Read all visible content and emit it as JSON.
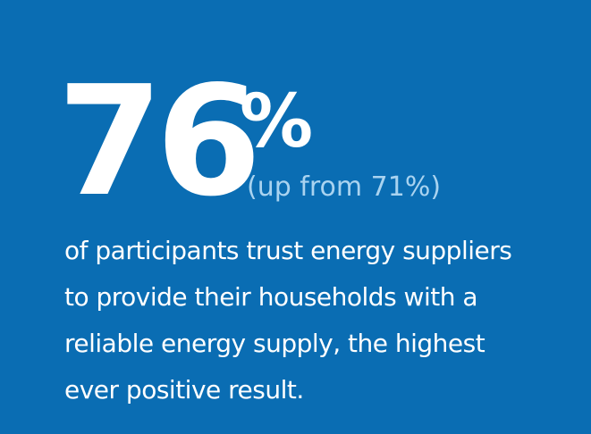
{
  "stat": {
    "number": "76",
    "percent_sign": "%",
    "change_note": "(up from 71%)"
  },
  "description": {
    "lines": [
      "of participants trust energy suppliers",
      "to provide their households with a",
      "reliable energy supply, the highest",
      "ever positive result."
    ]
  },
  "colors": {
    "background": "#0a6db3",
    "primary_text": "#ffffff",
    "secondary_text": "#a9d3f0"
  }
}
